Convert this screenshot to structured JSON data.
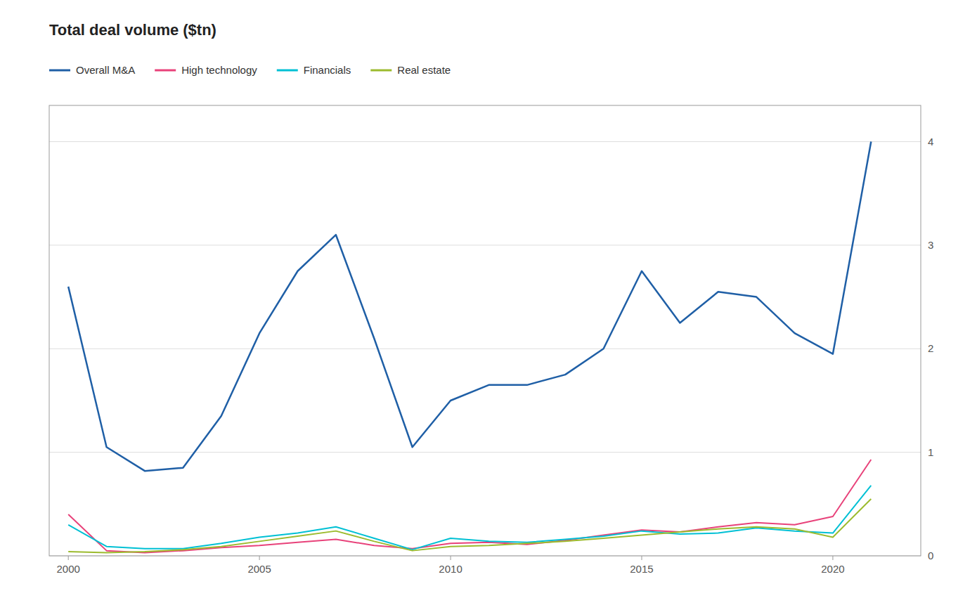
{
  "chart_data": {
    "type": "line",
    "title": "Total deal volume ($tn)",
    "x": [
      2000,
      2001,
      2002,
      2003,
      2004,
      2005,
      2006,
      2007,
      2008,
      2009,
      2010,
      2011,
      2012,
      2013,
      2014,
      2015,
      2016,
      2017,
      2018,
      2019,
      2020,
      2021
    ],
    "series": [
      {
        "name": "Overall M&A",
        "color": "#1f5fa6",
        "values": [
          2.6,
          1.05,
          0.82,
          0.85,
          1.35,
          2.15,
          2.75,
          3.1,
          2.1,
          1.05,
          1.5,
          1.65,
          1.65,
          1.75,
          2.0,
          2.75,
          2.25,
          2.55,
          2.5,
          2.15,
          1.95,
          4.0
        ]
      },
      {
        "name": "High technology",
        "color": "#e8427a",
        "values": [
          0.4,
          0.05,
          0.03,
          0.05,
          0.08,
          0.1,
          0.13,
          0.16,
          0.1,
          0.07,
          0.12,
          0.13,
          0.11,
          0.15,
          0.2,
          0.25,
          0.23,
          0.28,
          0.32,
          0.3,
          0.38,
          0.93
        ]
      },
      {
        "name": "Financials",
        "color": "#00c0d4",
        "values": [
          0.3,
          0.09,
          0.07,
          0.07,
          0.12,
          0.18,
          0.22,
          0.28,
          0.17,
          0.06,
          0.17,
          0.14,
          0.13,
          0.16,
          0.19,
          0.24,
          0.21,
          0.22,
          0.27,
          0.24,
          0.22,
          0.68
        ]
      },
      {
        "name": "Real estate",
        "color": "#9cbb2e",
        "values": [
          0.04,
          0.03,
          0.04,
          0.06,
          0.09,
          0.14,
          0.19,
          0.24,
          0.14,
          0.05,
          0.09,
          0.1,
          0.12,
          0.14,
          0.17,
          0.2,
          0.23,
          0.26,
          0.28,
          0.26,
          0.18,
          0.55
        ]
      }
    ],
    "xlim": [
      1999.5,
      2022.3
    ],
    "xticks": [
      2000,
      2005,
      2010,
      2015,
      2020
    ],
    "ylim": [
      0,
      4.35
    ],
    "yticks": [
      0,
      1,
      2,
      3,
      4
    ],
    "grid": true,
    "legend": "upper left"
  }
}
